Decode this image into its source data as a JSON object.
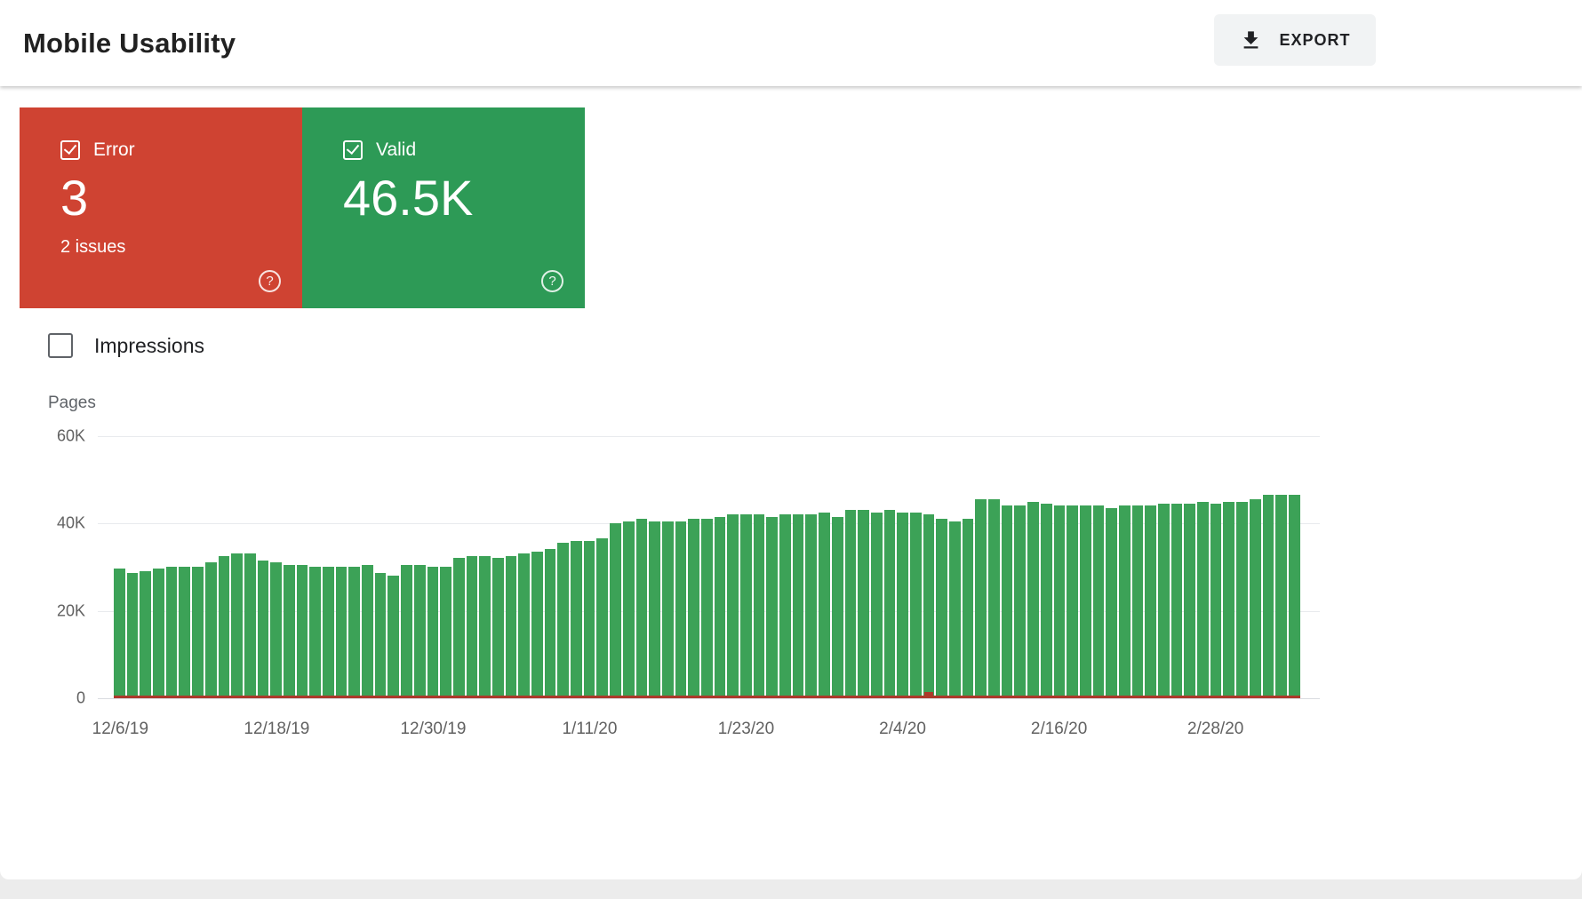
{
  "header": {
    "title": "Mobile Usability",
    "export_label": "EXPORT"
  },
  "summary_cards": {
    "error": {
      "label": "Error",
      "count": "3",
      "subtext": "2 issues",
      "checked": true,
      "color": "#cf4332"
    },
    "valid": {
      "label": "Valid",
      "count": "46.5K",
      "subtext": "",
      "checked": true,
      "color": "#2d9a56"
    }
  },
  "impressions_toggle": {
    "label": "Impressions",
    "checked": false
  },
  "help_icon_glyph": "?",
  "chart_data": {
    "type": "bar",
    "title": "",
    "xlabel": "",
    "ylabel": "Pages",
    "ylim": [
      0,
      60000
    ],
    "grid": true,
    "legend": "none",
    "y_ticks": [
      {
        "label": "60K",
        "value": 60000
      },
      {
        "label": "40K",
        "value": 40000
      },
      {
        "label": "20K",
        "value": 20000
      },
      {
        "label": "0",
        "value": 0
      }
    ],
    "x_tick_labels": [
      "12/6/19",
      "12/18/19",
      "12/30/19",
      "1/11/20",
      "1/23/20",
      "2/4/20",
      "2/16/20",
      "2/28/20"
    ],
    "x_tick_indexes": [
      0,
      12,
      24,
      36,
      48,
      60,
      72,
      84
    ],
    "x_unit": "day",
    "series": [
      {
        "name": "Valid pages",
        "color": "#3ca257",
        "values": [
          29500,
          28500,
          29000,
          29500,
          30000,
          30000,
          30000,
          31000,
          32500,
          33000,
          33000,
          31500,
          31000,
          30500,
          30500,
          30000,
          30000,
          30000,
          30000,
          30500,
          28500,
          28000,
          30500,
          30500,
          30000,
          30000,
          32000,
          32500,
          32500,
          32000,
          32500,
          33000,
          33500,
          34000,
          35500,
          36000,
          36000,
          36500,
          40000,
          40500,
          41000,
          40500,
          40500,
          40500,
          41000,
          41000,
          41500,
          42000,
          42000,
          42000,
          41500,
          42000,
          42000,
          42000,
          42500,
          41500,
          43000,
          43000,
          42500,
          43000,
          42500,
          42500,
          42000,
          41000,
          40500,
          41000,
          45500,
          45500,
          44000,
          44000,
          45000,
          44500,
          44000,
          44000,
          44000,
          44000,
          43500,
          44000,
          44000,
          44000,
          44500,
          44500,
          44500,
          45000,
          44500,
          45000,
          45000,
          45500,
          46500,
          46500,
          46500
        ]
      },
      {
        "name": "Error pages",
        "color": "#ac392b",
        "constant_value": 3,
        "spike": {
          "index": 62,
          "approx_value": 700
        }
      }
    ]
  }
}
